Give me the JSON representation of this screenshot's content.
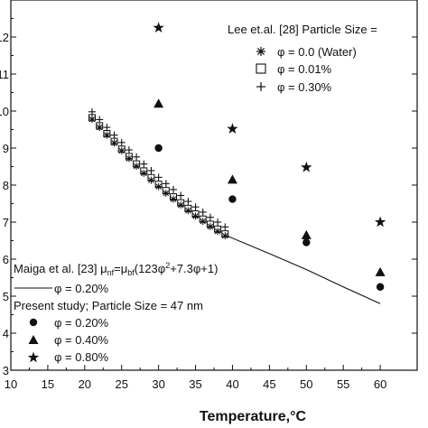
{
  "chart_data": {
    "type": "scatter",
    "xlabel": "Temperature,°C",
    "ylabel": "",
    "xlim": [
      10,
      65
    ],
    "ylim": [
      0.003,
      0.013
    ],
    "x_ticks": [
      "10",
      "15",
      "20",
      "25",
      "30",
      "35",
      "40",
      "45",
      "50",
      "55",
      "60"
    ],
    "y_ticks": [
      "3",
      "4",
      "5",
      "6",
      "7",
      "8",
      "9",
      "10",
      "11",
      "12"
    ],
    "grid": false,
    "series": [
      {
        "name": "φ = 0.0 (Water)",
        "marker": "asterisk",
        "x": [
          21,
          22,
          23,
          24,
          25,
          26,
          27,
          28,
          29,
          30,
          31,
          32,
          33,
          34,
          35,
          36,
          37,
          38,
          39
        ],
        "y": [
          0.00978,
          0.00956,
          0.00935,
          0.00914,
          0.00893,
          0.00872,
          0.00851,
          0.00832,
          0.00813,
          0.00796,
          0.00778,
          0.00762,
          0.00746,
          0.00731,
          0.00716,
          0.00702,
          0.00688,
          0.00675,
          0.00663
        ]
      },
      {
        "name": "φ = 0.01%",
        "marker": "square",
        "x": [
          21,
          22,
          23,
          24,
          25,
          26,
          27,
          28,
          29,
          30,
          31,
          32,
          33,
          34,
          35,
          36,
          37,
          38,
          39
        ],
        "y": [
          0.00982,
          0.0096,
          0.00939,
          0.00918,
          0.00897,
          0.00877,
          0.00857,
          0.00838,
          0.0082,
          0.00802,
          0.00785,
          0.00768,
          0.00752,
          0.00737,
          0.00722,
          0.00708,
          0.00694,
          0.00681,
          0.00668
        ]
      },
      {
        "name": "φ = 0.30%",
        "marker": "plus",
        "x": [
          21,
          22,
          23,
          24,
          25,
          26,
          27,
          28,
          29,
          30,
          31,
          32,
          33,
          34,
          35,
          36,
          37,
          38,
          39
        ],
        "y": [
          0.00998,
          0.00977,
          0.00956,
          0.00935,
          0.00915,
          0.00895,
          0.00876,
          0.00857,
          0.00839,
          0.00821,
          0.00804,
          0.00788,
          0.00772,
          0.00756,
          0.00741,
          0.00727,
          0.00713,
          0.007,
          0.00687
        ]
      },
      {
        "name": "φ = 0.20%",
        "marker": "line",
        "x": [
          39,
          45,
          50,
          55,
          60
        ],
        "y": [
          0.00665,
          0.00615,
          0.00572,
          0.00525,
          0.0048
        ]
      },
      {
        "name": "φ = 0.20%",
        "marker": "circle",
        "x": [
          30,
          40,
          50,
          60
        ],
        "y": [
          0.009,
          0.00762,
          0.00645,
          0.00525
        ]
      },
      {
        "name": "φ = 0.40%",
        "marker": "triangle",
        "x": [
          30,
          40,
          50,
          60
        ],
        "y": [
          0.0102,
          0.00815,
          0.00665,
          0.00565
        ]
      },
      {
        "name": "φ = 0.80%",
        "marker": "star",
        "x": [
          30,
          40,
          50,
          60
        ],
        "y": [
          0.01225,
          0.00952,
          0.00848,
          0.007
        ]
      }
    ],
    "legend_top": {
      "header": "Lee et.al. [28] Particle Size =",
      "items": [
        "φ = 0.0 (Water)",
        "φ = 0.01%",
        "φ = 0.30%"
      ]
    },
    "legend_bottom": {
      "maiga_header": "Maiga et al. [23] μ",
      "maiga_sub1": "nf",
      "maiga_mid": "=μ",
      "maiga_sub2": "bf",
      "maiga_formula": "(123φ",
      "maiga_sup": "2",
      "maiga_tail": "+7.3φ+1)",
      "line_item": "φ = 0.20%",
      "present_header": "Present study; Particle Size = 47 nm",
      "items": [
        "φ = 0.20%",
        "φ = 0.40%",
        "φ = 0.80%"
      ]
    }
  }
}
